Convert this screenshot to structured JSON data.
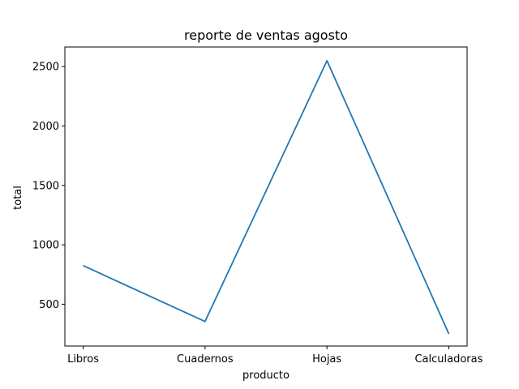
{
  "chart_data": {
    "type": "line",
    "title": "reporte de ventas agosto",
    "xlabel": "producto",
    "ylabel": "total",
    "categories": [
      "Libros",
      "Cuadernos",
      "Hojas",
      "Calculadoras"
    ],
    "series": [
      {
        "values": [
          825,
          355,
          2550,
          250
        ],
        "color": "#1f77b4"
      }
    ],
    "ylim": [
      148,
      2665
    ],
    "yticks": [
      500,
      1000,
      1500,
      2000,
      2500
    ],
    "grid": false,
    "legend": "none"
  }
}
